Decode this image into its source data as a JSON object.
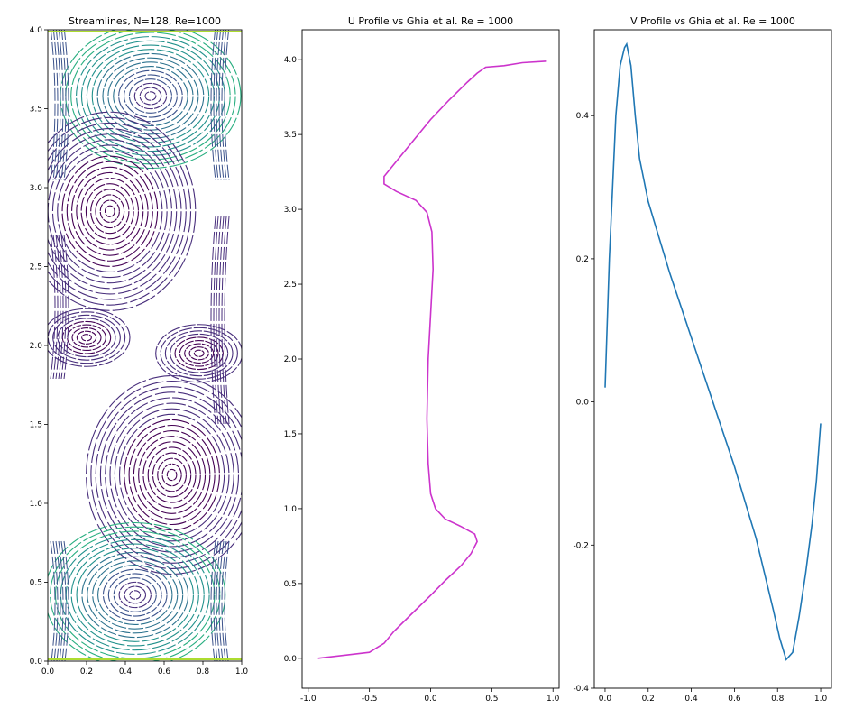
{
  "chart_data": [
    {
      "type": "streamplot",
      "title": "Streamlines, N=128, Re=1000",
      "xlim": [
        0.0,
        1.0
      ],
      "ylim": [
        0.0,
        4.0
      ],
      "xticks": [
        "0.0",
        "0.2",
        "0.4",
        "0.6",
        "0.8",
        "1.0"
      ],
      "yticks": [
        "0.0",
        "0.5",
        "1.0",
        "1.5",
        "2.0",
        "2.5",
        "3.0",
        "3.5",
        "4.0"
      ],
      "colormap": "viridis",
      "vortex_centers": [
        {
          "x": 0.53,
          "y": 3.58
        },
        {
          "x": 0.32,
          "y": 2.85
        },
        {
          "x": 0.2,
          "y": 2.05
        },
        {
          "x": 0.78,
          "y": 1.95
        },
        {
          "x": 0.64,
          "y": 1.18
        },
        {
          "x": 0.45,
          "y": 0.42
        }
      ]
    },
    {
      "type": "line",
      "title": "U Profile vs Ghia et al. Re = 1000",
      "xlim": [
        -1.05,
        1.05
      ],
      "ylim": [
        -0.2,
        4.2
      ],
      "xticks": [
        "-1.0",
        "-0.5",
        "0.0",
        "0.5",
        "1.0"
      ],
      "yticks": [
        "0.0",
        "0.5",
        "1.0",
        "1.5",
        "2.0",
        "2.5",
        "3.0",
        "3.5",
        "4.0"
      ],
      "color": "#cc33cc",
      "points": [
        [
          -0.92,
          0.0
        ],
        [
          -0.5,
          0.04
        ],
        [
          -0.38,
          0.1
        ],
        [
          -0.3,
          0.18
        ],
        [
          -0.15,
          0.3
        ],
        [
          0.0,
          0.42
        ],
        [
          0.12,
          0.52
        ],
        [
          0.25,
          0.62
        ],
        [
          0.33,
          0.7
        ],
        [
          0.38,
          0.78
        ],
        [
          0.36,
          0.83
        ],
        [
          0.25,
          0.88
        ],
        [
          0.12,
          0.93
        ],
        [
          0.04,
          1.0
        ],
        [
          0.0,
          1.1
        ],
        [
          -0.02,
          1.3
        ],
        [
          -0.03,
          1.6
        ],
        [
          -0.02,
          2.0
        ],
        [
          0.0,
          2.3
        ],
        [
          0.02,
          2.6
        ],
        [
          0.01,
          2.85
        ],
        [
          -0.03,
          2.98
        ],
        [
          -0.12,
          3.06
        ],
        [
          -0.28,
          3.12
        ],
        [
          -0.38,
          3.17
        ],
        [
          -0.38,
          3.22
        ],
        [
          -0.3,
          3.3
        ],
        [
          -0.15,
          3.45
        ],
        [
          0.0,
          3.6
        ],
        [
          0.15,
          3.73
        ],
        [
          0.3,
          3.85
        ],
        [
          0.38,
          3.91
        ],
        [
          0.45,
          3.95
        ],
        [
          0.6,
          3.96
        ],
        [
          0.75,
          3.98
        ],
        [
          0.95,
          3.99
        ]
      ]
    },
    {
      "type": "line",
      "title": "V Profile vs Ghia et al. Re = 1000",
      "xlim": [
        -0.05,
        1.05
      ],
      "ylim": [
        -0.4,
        0.52
      ],
      "xticks": [
        "0.0",
        "0.2",
        "0.4",
        "0.6",
        "0.8",
        "1.0"
      ],
      "yticks": [
        "-0.4",
        "-0.2",
        "0.0",
        "0.2",
        "0.4"
      ],
      "color": "#1f77b4",
      "points": [
        [
          0.0,
          0.02
        ],
        [
          0.02,
          0.2
        ],
        [
          0.05,
          0.4
        ],
        [
          0.07,
          0.47
        ],
        [
          0.09,
          0.495
        ],
        [
          0.1,
          0.5
        ],
        [
          0.12,
          0.47
        ],
        [
          0.14,
          0.4
        ],
        [
          0.16,
          0.34
        ],
        [
          0.18,
          0.31
        ],
        [
          0.2,
          0.28
        ],
        [
          0.25,
          0.23
        ],
        [
          0.3,
          0.18
        ],
        [
          0.4,
          0.09
        ],
        [
          0.5,
          0.0
        ],
        [
          0.6,
          -0.09
        ],
        [
          0.7,
          -0.19
        ],
        [
          0.78,
          -0.29
        ],
        [
          0.81,
          -0.33
        ],
        [
          0.84,
          -0.36
        ],
        [
          0.87,
          -0.35
        ],
        [
          0.9,
          -0.3
        ],
        [
          0.93,
          -0.24
        ],
        [
          0.96,
          -0.17
        ],
        [
          0.98,
          -0.11
        ],
        [
          1.0,
          -0.03
        ]
      ]
    }
  ]
}
